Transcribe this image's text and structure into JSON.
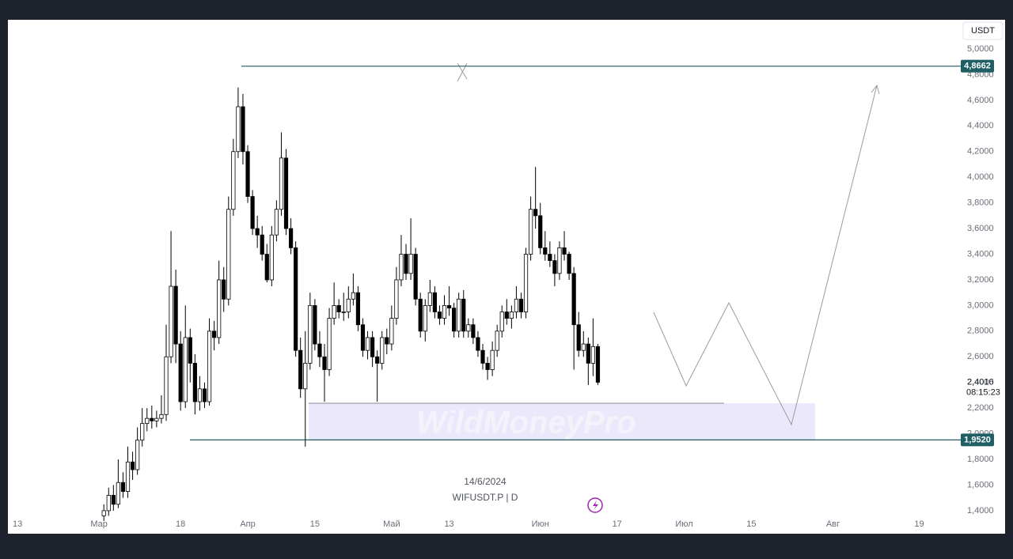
{
  "chart_data": {
    "type": "candlestick",
    "title": "WIFUSDT.P | D",
    "date": "14/6/2024",
    "currency": "USDT",
    "countdown": "08:15:23",
    "watermark": "WildMoneyPro",
    "last_price_label": "2,4016",
    "bull_color": "#ffffff",
    "bear_color": "#000000",
    "levels": [
      {
        "value": 4.8662,
        "label": "4,8662"
      },
      {
        "value": 1.952,
        "label": "1,9520"
      }
    ],
    "x": [
      "2024-03-02",
      "2024-03-03",
      "2024-03-04",
      "2024-03-05",
      "2024-03-06",
      "2024-03-07",
      "2024-03-08",
      "2024-03-09",
      "2024-03-10",
      "2024-03-11",
      "2024-03-12",
      "2024-03-13",
      "2024-03-14",
      "2024-03-15",
      "2024-03-16",
      "2024-03-17",
      "2024-03-18",
      "2024-03-19",
      "2024-03-20",
      "2024-03-21",
      "2024-03-22",
      "2024-03-23",
      "2024-03-24",
      "2024-03-25",
      "2024-03-26",
      "2024-03-27",
      "2024-03-28",
      "2024-03-29",
      "2024-03-30",
      "2024-03-31",
      "2024-04-01",
      "2024-04-02",
      "2024-04-03",
      "2024-04-04",
      "2024-04-05",
      "2024-04-06",
      "2024-04-07",
      "2024-04-08",
      "2024-04-09",
      "2024-04-10",
      "2024-04-11",
      "2024-04-12",
      "2024-04-13",
      "2024-04-14",
      "2024-04-15",
      "2024-04-16",
      "2024-04-17",
      "2024-04-18",
      "2024-04-19",
      "2024-04-20",
      "2024-04-21",
      "2024-04-22",
      "2024-04-23",
      "2024-04-24",
      "2024-04-25",
      "2024-04-26",
      "2024-04-27",
      "2024-04-28",
      "2024-04-29",
      "2024-04-30",
      "2024-05-01",
      "2024-05-02",
      "2024-05-03",
      "2024-05-04",
      "2024-05-05",
      "2024-05-06",
      "2024-05-07",
      "2024-05-08",
      "2024-05-09",
      "2024-05-10",
      "2024-05-11",
      "2024-05-12",
      "2024-05-13",
      "2024-05-14",
      "2024-05-15",
      "2024-05-16",
      "2024-05-17",
      "2024-05-18",
      "2024-05-19",
      "2024-05-20",
      "2024-05-21",
      "2024-05-22",
      "2024-05-23",
      "2024-05-24",
      "2024-05-25",
      "2024-05-26",
      "2024-05-27",
      "2024-05-28",
      "2024-05-29",
      "2024-05-30",
      "2024-05-31",
      "2024-06-01",
      "2024-06-02",
      "2024-06-03",
      "2024-06-04",
      "2024-06-05",
      "2024-06-06",
      "2024-06-07",
      "2024-06-08",
      "2024-06-09",
      "2024-06-10",
      "2024-06-11",
      "2024-06-12",
      "2024-06-13"
    ],
    "ohlc": [
      [
        1.36,
        1.45,
        1.32,
        1.4
      ],
      [
        1.4,
        1.58,
        1.36,
        1.52
      ],
      [
        1.52,
        1.6,
        1.4,
        1.45
      ],
      [
        1.45,
        1.8,
        1.42,
        1.62
      ],
      [
        1.62,
        1.7,
        1.5,
        1.55
      ],
      [
        1.55,
        1.9,
        1.5,
        1.78
      ],
      [
        1.78,
        1.86,
        1.64,
        1.72
      ],
      [
        1.72,
        2.05,
        1.68,
        1.95
      ],
      [
        1.95,
        2.2,
        1.9,
        2.08
      ],
      [
        2.08,
        2.2,
        2.02,
        2.12
      ],
      [
        2.12,
        2.22,
        2.04,
        2.1
      ],
      [
        2.1,
        2.18,
        2.05,
        2.12
      ],
      [
        2.12,
        2.3,
        2.08,
        2.15
      ],
      [
        2.15,
        2.85,
        2.1,
        2.6
      ],
      [
        2.6,
        3.58,
        2.55,
        3.15
      ],
      [
        3.15,
        3.28,
        2.55,
        2.7
      ],
      [
        2.7,
        2.8,
        2.18,
        2.25
      ],
      [
        2.25,
        3.0,
        2.2,
        2.75
      ],
      [
        2.75,
        2.82,
        2.4,
        2.55
      ],
      [
        2.55,
        2.62,
        2.15,
        2.25
      ],
      [
        2.25,
        2.45,
        2.18,
        2.35
      ],
      [
        2.35,
        2.4,
        2.2,
        2.25
      ],
      [
        2.25,
        2.9,
        2.22,
        2.8
      ],
      [
        2.8,
        2.88,
        2.65,
        2.75
      ],
      [
        2.75,
        3.35,
        2.7,
        3.2
      ],
      [
        3.2,
        3.3,
        2.95,
        3.05
      ],
      [
        3.05,
        3.85,
        3.0,
        3.75
      ],
      [
        3.75,
        4.3,
        3.7,
        4.2
      ],
      [
        4.2,
        4.7,
        4.15,
        4.55
      ],
      [
        4.55,
        4.65,
        4.1,
        4.2
      ],
      [
        4.2,
        4.25,
        3.8,
        3.85
      ],
      [
        3.85,
        3.9,
        3.55,
        3.6
      ],
      [
        3.6,
        3.7,
        3.45,
        3.55
      ],
      [
        3.55,
        3.62,
        3.35,
        3.4
      ],
      [
        3.4,
        3.48,
        3.18,
        3.2
      ],
      [
        3.2,
        3.62,
        3.15,
        3.55
      ],
      [
        3.55,
        3.82,
        3.5,
        3.75
      ],
      [
        3.75,
        4.35,
        3.7,
        4.15
      ],
      [
        4.15,
        4.22,
        3.55,
        3.6
      ],
      [
        3.6,
        3.68,
        3.4,
        3.45
      ],
      [
        3.45,
        3.5,
        2.6,
        2.65
      ],
      [
        2.65,
        2.75,
        2.28,
        2.35
      ],
      [
        2.35,
        2.8,
        1.9,
        2.55
      ],
      [
        2.55,
        3.1,
        2.5,
        3.0
      ],
      [
        3.0,
        3.05,
        2.65,
        2.7
      ],
      [
        2.7,
        2.8,
        2.52,
        2.6
      ],
      [
        2.6,
        2.7,
        2.25,
        2.5
      ],
      [
        2.5,
        2.98,
        2.45,
        2.9
      ],
      [
        2.9,
        3.18,
        2.85,
        3.0
      ],
      [
        3.0,
        3.05,
        2.9,
        2.95
      ],
      [
        2.95,
        3.1,
        2.88,
        2.95
      ],
      [
        2.95,
        3.15,
        2.9,
        3.05
      ],
      [
        3.05,
        3.25,
        3.0,
        3.1
      ],
      [
        3.1,
        3.15,
        2.8,
        2.85
      ],
      [
        2.85,
        2.9,
        2.6,
        2.65
      ],
      [
        2.65,
        2.8,
        2.58,
        2.75
      ],
      [
        2.75,
        2.8,
        2.52,
        2.6
      ],
      [
        2.6,
        2.65,
        2.25,
        2.55
      ],
      [
        2.55,
        2.8,
        2.5,
        2.75
      ],
      [
        2.75,
        2.82,
        2.62,
        2.7
      ],
      [
        2.7,
        3.0,
        2.65,
        2.9
      ],
      [
        2.9,
        3.3,
        2.85,
        3.2
      ],
      [
        3.2,
        3.55,
        3.15,
        3.4
      ],
      [
        3.4,
        3.48,
        3.2,
        3.25
      ],
      [
        3.25,
        3.68,
        3.2,
        3.4
      ],
      [
        3.4,
        3.45,
        3.0,
        3.05
      ],
      [
        3.05,
        3.1,
        2.75,
        2.8
      ],
      [
        2.8,
        3.05,
        2.72,
        3.0
      ],
      [
        3.0,
        3.2,
        2.95,
        3.1
      ],
      [
        3.1,
        3.15,
        2.9,
        2.95
      ],
      [
        2.95,
        3.0,
        2.85,
        2.9
      ],
      [
        2.9,
        3.08,
        2.85,
        3.0
      ],
      [
        3.0,
        3.15,
        2.92,
        2.98
      ],
      [
        2.98,
        3.02,
        2.75,
        2.8
      ],
      [
        2.8,
        3.1,
        2.75,
        3.05
      ],
      [
        3.05,
        3.12,
        2.75,
        2.8
      ],
      [
        2.8,
        2.9,
        2.75,
        2.85
      ],
      [
        2.85,
        2.9,
        2.7,
        2.75
      ],
      [
        2.75,
        2.8,
        2.6,
        2.65
      ],
      [
        2.65,
        2.7,
        2.5,
        2.55
      ],
      [
        2.55,
        2.6,
        2.42,
        2.5
      ],
      [
        2.5,
        2.72,
        2.45,
        2.65
      ],
      [
        2.65,
        2.85,
        2.6,
        2.8
      ],
      [
        2.8,
        3.0,
        2.75,
        2.95
      ],
      [
        2.95,
        3.05,
        2.85,
        2.9
      ],
      [
        2.9,
        3.0,
        2.82,
        2.95
      ],
      [
        2.95,
        3.15,
        2.9,
        3.05
      ],
      [
        3.05,
        3.1,
        2.9,
        2.95
      ],
      [
        2.95,
        3.45,
        2.9,
        3.4
      ],
      [
        3.4,
        3.85,
        3.35,
        3.75
      ],
      [
        3.75,
        4.08,
        3.6,
        3.7
      ],
      [
        3.7,
        3.8,
        3.4,
        3.45
      ],
      [
        3.45,
        3.58,
        3.35,
        3.4
      ],
      [
        3.4,
        3.5,
        3.3,
        3.35
      ],
      [
        3.35,
        3.4,
        3.15,
        3.25
      ],
      [
        3.25,
        3.5,
        3.2,
        3.45
      ],
      [
        3.45,
        3.58,
        3.35,
        3.4
      ],
      [
        3.4,
        3.42,
        3.2,
        3.25
      ],
      [
        3.25,
        3.3,
        2.5,
        2.85
      ],
      [
        2.85,
        2.95,
        2.6,
        2.65
      ],
      [
        2.65,
        2.8,
        2.6,
        2.7
      ],
      [
        2.7,
        2.75,
        2.38,
        2.55
      ],
      [
        2.55,
        2.9,
        2.45,
        2.68
      ],
      [
        2.68,
        2.7,
        2.38,
        2.4016
      ]
    ],
    "xlim": [
      "2024-02-11",
      "2024-08-27"
    ],
    "xticks": [
      {
        "value": "2024-02-13",
        "label": "13"
      },
      {
        "value": "2024-03-01",
        "label": "Мар"
      },
      {
        "value": "2024-03-18",
        "label": "18"
      },
      {
        "value": "2024-04-01",
        "label": "Апр"
      },
      {
        "value": "2024-04-15",
        "label": "15"
      },
      {
        "value": "2024-05-01",
        "label": "Май"
      },
      {
        "value": "2024-05-13",
        "label": "13"
      },
      {
        "value": "2024-06-01",
        "label": "Июн"
      },
      {
        "value": "2024-06-17",
        "label": "17"
      },
      {
        "value": "2024-07-01",
        "label": "Июл"
      },
      {
        "value": "2024-07-15",
        "label": "15"
      },
      {
        "value": "2024-08-01",
        "label": "Авг"
      },
      {
        "value": "2024-08-19",
        "label": "19"
      }
    ],
    "ylim": [
      1.344,
      5.228
    ],
    "yticks": [
      {
        "value": 1.4,
        "label": "1,4000"
      },
      {
        "value": 1.6,
        "label": "1,6000"
      },
      {
        "value": 1.8,
        "label": "1,8000"
      },
      {
        "value": 2.0,
        "label": "2,0000"
      },
      {
        "value": 2.2,
        "label": "2,2000"
      },
      {
        "value": 2.4,
        "label": "2,4000"
      },
      {
        "value": 2.6,
        "label": "2,6000"
      },
      {
        "value": 2.8,
        "label": "2,8000"
      },
      {
        "value": 3.0,
        "label": "3,0000"
      },
      {
        "value": 3.2,
        "label": "3,2000"
      },
      {
        "value": 3.4,
        "label": "3,4000"
      },
      {
        "value": 3.6,
        "label": "3,6000"
      },
      {
        "value": 3.8,
        "label": "3,8000"
      },
      {
        "value": 4.0,
        "label": "4,0000"
      },
      {
        "value": 4.2,
        "label": "4,2000"
      },
      {
        "value": 4.4,
        "label": "4,4000"
      },
      {
        "value": 4.6,
        "label": "4,6000"
      },
      {
        "value": 4.8,
        "label": "4,8000"
      },
      {
        "value": 5.0,
        "label": "5,0000"
      }
    ]
  }
}
